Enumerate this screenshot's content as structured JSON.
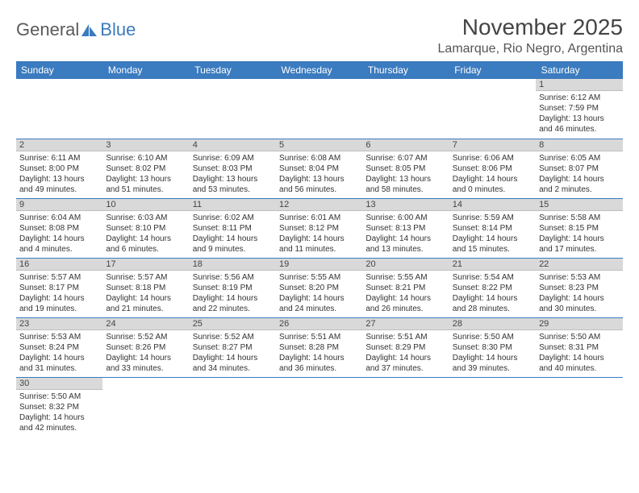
{
  "logo": {
    "main": "General",
    "accent": "Blue"
  },
  "title": "November 2025",
  "location": "Lamarque, Rio Negro, Argentina",
  "colors": {
    "header_bg": "#3b7bbf",
    "header_text": "#ffffff",
    "daynum_bg": "#d9d9d9",
    "row_border": "#3b7bbf"
  },
  "weekdayHeaders": [
    "Sunday",
    "Monday",
    "Tuesday",
    "Wednesday",
    "Thursday",
    "Friday",
    "Saturday"
  ],
  "weeks": [
    [
      null,
      null,
      null,
      null,
      null,
      null,
      {
        "n": "1",
        "sr": "6:12 AM",
        "ss": "7:59 PM",
        "dl": "13 hours and 46 minutes."
      }
    ],
    [
      {
        "n": "2",
        "sr": "6:11 AM",
        "ss": "8:00 PM",
        "dl": "13 hours and 49 minutes."
      },
      {
        "n": "3",
        "sr": "6:10 AM",
        "ss": "8:02 PM",
        "dl": "13 hours and 51 minutes."
      },
      {
        "n": "4",
        "sr": "6:09 AM",
        "ss": "8:03 PM",
        "dl": "13 hours and 53 minutes."
      },
      {
        "n": "5",
        "sr": "6:08 AM",
        "ss": "8:04 PM",
        "dl": "13 hours and 56 minutes."
      },
      {
        "n": "6",
        "sr": "6:07 AM",
        "ss": "8:05 PM",
        "dl": "13 hours and 58 minutes."
      },
      {
        "n": "7",
        "sr": "6:06 AM",
        "ss": "8:06 PM",
        "dl": "14 hours and 0 minutes."
      },
      {
        "n": "8",
        "sr": "6:05 AM",
        "ss": "8:07 PM",
        "dl": "14 hours and 2 minutes."
      }
    ],
    [
      {
        "n": "9",
        "sr": "6:04 AM",
        "ss": "8:08 PM",
        "dl": "14 hours and 4 minutes."
      },
      {
        "n": "10",
        "sr": "6:03 AM",
        "ss": "8:10 PM",
        "dl": "14 hours and 6 minutes."
      },
      {
        "n": "11",
        "sr": "6:02 AM",
        "ss": "8:11 PM",
        "dl": "14 hours and 9 minutes."
      },
      {
        "n": "12",
        "sr": "6:01 AM",
        "ss": "8:12 PM",
        "dl": "14 hours and 11 minutes."
      },
      {
        "n": "13",
        "sr": "6:00 AM",
        "ss": "8:13 PM",
        "dl": "14 hours and 13 minutes."
      },
      {
        "n": "14",
        "sr": "5:59 AM",
        "ss": "8:14 PM",
        "dl": "14 hours and 15 minutes."
      },
      {
        "n": "15",
        "sr": "5:58 AM",
        "ss": "8:15 PM",
        "dl": "14 hours and 17 minutes."
      }
    ],
    [
      {
        "n": "16",
        "sr": "5:57 AM",
        "ss": "8:17 PM",
        "dl": "14 hours and 19 minutes."
      },
      {
        "n": "17",
        "sr": "5:57 AM",
        "ss": "8:18 PM",
        "dl": "14 hours and 21 minutes."
      },
      {
        "n": "18",
        "sr": "5:56 AM",
        "ss": "8:19 PM",
        "dl": "14 hours and 22 minutes."
      },
      {
        "n": "19",
        "sr": "5:55 AM",
        "ss": "8:20 PM",
        "dl": "14 hours and 24 minutes."
      },
      {
        "n": "20",
        "sr": "5:55 AM",
        "ss": "8:21 PM",
        "dl": "14 hours and 26 minutes."
      },
      {
        "n": "21",
        "sr": "5:54 AM",
        "ss": "8:22 PM",
        "dl": "14 hours and 28 minutes."
      },
      {
        "n": "22",
        "sr": "5:53 AM",
        "ss": "8:23 PM",
        "dl": "14 hours and 30 minutes."
      }
    ],
    [
      {
        "n": "23",
        "sr": "5:53 AM",
        "ss": "8:24 PM",
        "dl": "14 hours and 31 minutes."
      },
      {
        "n": "24",
        "sr": "5:52 AM",
        "ss": "8:26 PM",
        "dl": "14 hours and 33 minutes."
      },
      {
        "n": "25",
        "sr": "5:52 AM",
        "ss": "8:27 PM",
        "dl": "14 hours and 34 minutes."
      },
      {
        "n": "26",
        "sr": "5:51 AM",
        "ss": "8:28 PM",
        "dl": "14 hours and 36 minutes."
      },
      {
        "n": "27",
        "sr": "5:51 AM",
        "ss": "8:29 PM",
        "dl": "14 hours and 37 minutes."
      },
      {
        "n": "28",
        "sr": "5:50 AM",
        "ss": "8:30 PM",
        "dl": "14 hours and 39 minutes."
      },
      {
        "n": "29",
        "sr": "5:50 AM",
        "ss": "8:31 PM",
        "dl": "14 hours and 40 minutes."
      }
    ],
    [
      {
        "n": "30",
        "sr": "5:50 AM",
        "ss": "8:32 PM",
        "dl": "14 hours and 42 minutes."
      },
      null,
      null,
      null,
      null,
      null,
      null
    ]
  ],
  "labels": {
    "sunrise": "Sunrise:",
    "sunset": "Sunset:",
    "daylight": "Daylight:"
  }
}
